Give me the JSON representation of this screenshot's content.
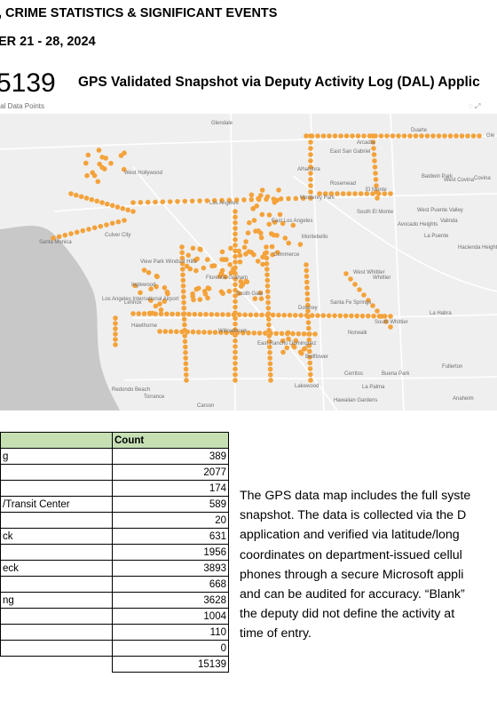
{
  "header": {
    "line1": ", CRIME STATISTICS & SIGNIFICANT EVENTS",
    "line2": "ER 21 - 28, 2024"
  },
  "snapshot": {
    "total": "5139",
    "total_label": "tal Data Points",
    "title": "GPS Validated Snapshot via Deputy Activity Log (DAL) Applic",
    "toolbar_icons": [
      "ellipsis-icon",
      "expand-icon"
    ],
    "toolbar_glyphs": [
      "◌",
      "⤢"
    ]
  },
  "map": {
    "colors": {
      "land": "#efefef",
      "ocean": "#c8c8c8",
      "road": "#ffffff",
      "dot": "#f4a23a",
      "dot_dark": "#e98a1f",
      "label": "#6e6e6e"
    },
    "labels": [
      "Glendale",
      "Duarte",
      "Arcadia",
      "East San Gabriel",
      "West Hollywood",
      "Alhambra",
      "Rosemead",
      "El Monte",
      "Baldwin Park",
      "West Covina",
      "Covina",
      "Los Angeles",
      "Monterey Park",
      "East Los Angeles",
      "South El Monte",
      "Avocado Heights",
      "West Puente Valley",
      "Valinda",
      "Culver City",
      "Santa Monica",
      "Montebello",
      "La Puente",
      "View Park Windsor Hills",
      "Commerce",
      "Hacienda Heights",
      "Los Angeles International Airport",
      "Inglewood",
      "Florence-Graham",
      "West Whittier",
      "Whittier",
      "South Gate",
      "Lennox",
      "Hawthorne",
      "Downey",
      "Santa Fe Springs",
      "South Whittier",
      "La Habra",
      "Willowbrook",
      "Norwalk",
      "East Rancho Dominguez",
      "Bellflower",
      "Fullerton",
      "Cerritos",
      "Buena Park",
      "Redondo Beach",
      "Torrance",
      "Lakewood",
      "La Palma",
      "Carson",
      "Hawaiian Gardens",
      "Anaheim",
      "Gle"
    ]
  },
  "table": {
    "header": [
      "",
      "Count"
    ],
    "rows": [
      {
        "category": "g",
        "count": "389",
        "blue": false
      },
      {
        "category": "",
        "count": "2077",
        "blue": false
      },
      {
        "category": "",
        "count": "174",
        "blue": true
      },
      {
        "category": "/Transit Center",
        "count": "589",
        "blue": false
      },
      {
        "category": "",
        "count": "20",
        "blue": false
      },
      {
        "category": "ck",
        "count": "631",
        "blue": false
      },
      {
        "category": "",
        "count": "1956",
        "blue": false
      },
      {
        "category": "eck",
        "count": "3893",
        "blue": false
      },
      {
        "category": "",
        "count": "668",
        "blue": false
      },
      {
        "category": "ng",
        "count": "3628",
        "blue": false
      },
      {
        "category": "",
        "count": "1004",
        "blue": false
      },
      {
        "category": "",
        "count": "110",
        "blue": false
      },
      {
        "category": "",
        "count": "0",
        "blue": false
      },
      {
        "category": "",
        "count": "15139",
        "blue": false
      }
    ]
  },
  "description": {
    "lines": [
      "The GPS data map includes the full syste",
      "snapshot. The data is collected via the D",
      "application and verified via latitude/long",
      "coordinates on department-issued cellul",
      "phones through a secure Microsoft appli",
      "and can be audited for accuracy. “Blank”",
      "the deputy did not define the activity at",
      "time of entry."
    ]
  }
}
